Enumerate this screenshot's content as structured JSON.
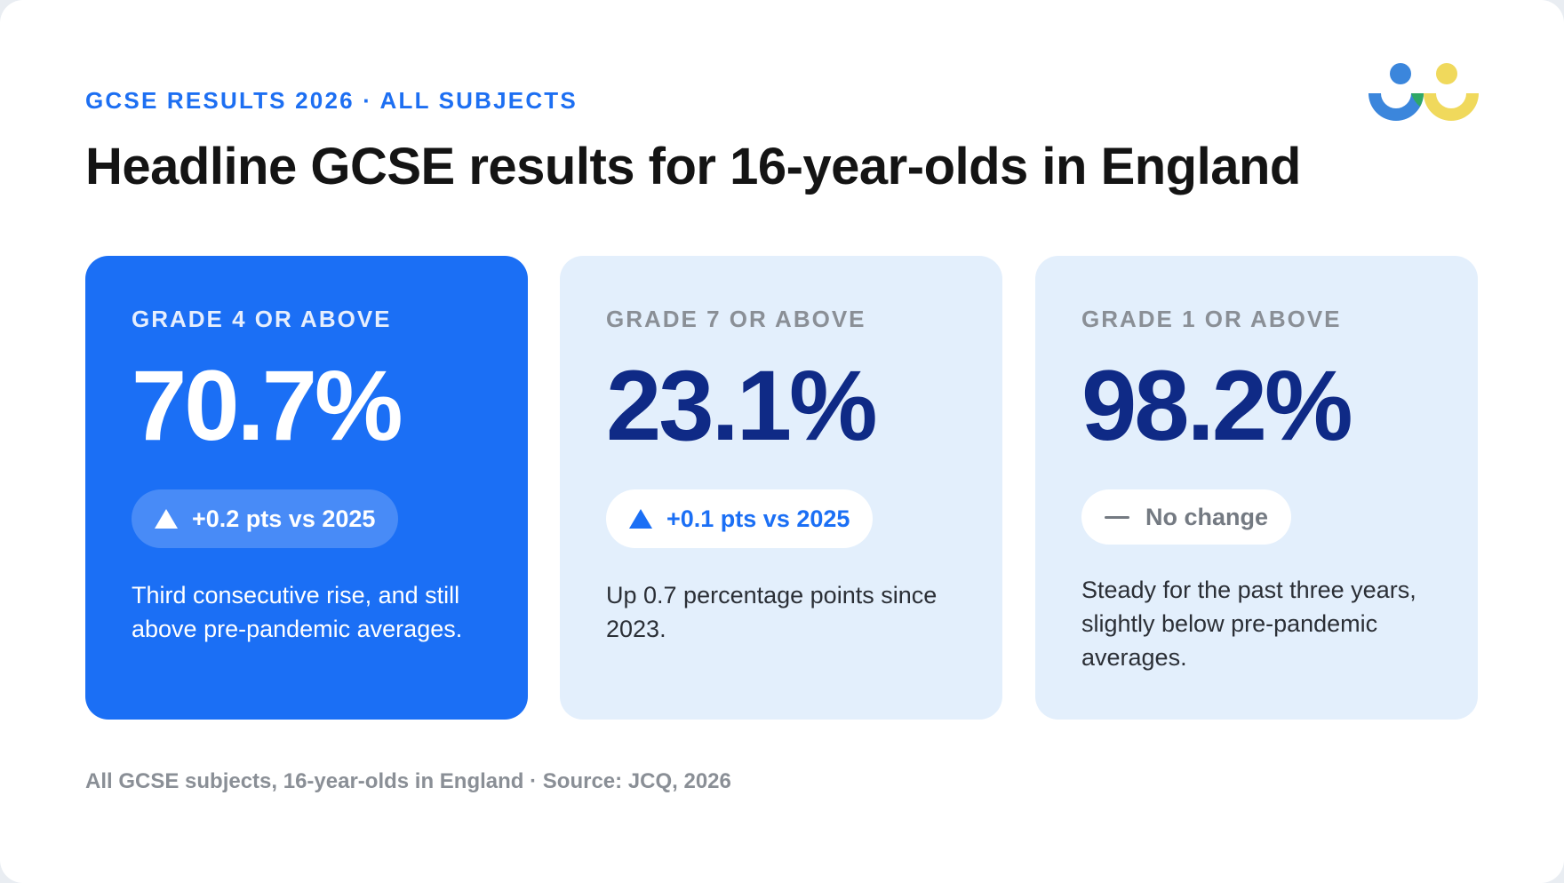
{
  "header": {
    "eyebrow": "GCSE RESULTS 2026 · ALL SUBJECTS",
    "title": "Headline GCSE results for 16-year-olds in England"
  },
  "logo": {
    "icon": "two-people-logo-icon",
    "colors": [
      "#3b86dc",
      "#f0d95c",
      "#2fa866"
    ]
  },
  "cards": [
    {
      "label": "GRADE 4 OR ABOVE",
      "value": "70.7%",
      "change": "+0.2 pts vs 2025",
      "change_icon": "up-triangle-icon",
      "description": "Third consecutive rise, and still above pre-pandemic averages."
    },
    {
      "label": "GRADE 7 OR ABOVE",
      "value": "23.1%",
      "change": "+0.1 pts vs 2025",
      "change_icon": "up-triangle-icon",
      "description": "Up 0.7 percentage points since 2023."
    },
    {
      "label": "GRADE 1 OR ABOVE",
      "value": "98.2%",
      "change": "No change",
      "change_icon": "dash-icon",
      "description": "Steady for the past three years, slightly below pre-pandemic averages."
    }
  ],
  "footnote": "All GCSE subjects, 16-year-olds in England · Source: JCQ, 2026",
  "colors": {
    "accent": "#1b6ff5",
    "highlight_card": "#1b6ff5",
    "light_card": "#e3effc",
    "value_dark": "#0f2a86"
  }
}
